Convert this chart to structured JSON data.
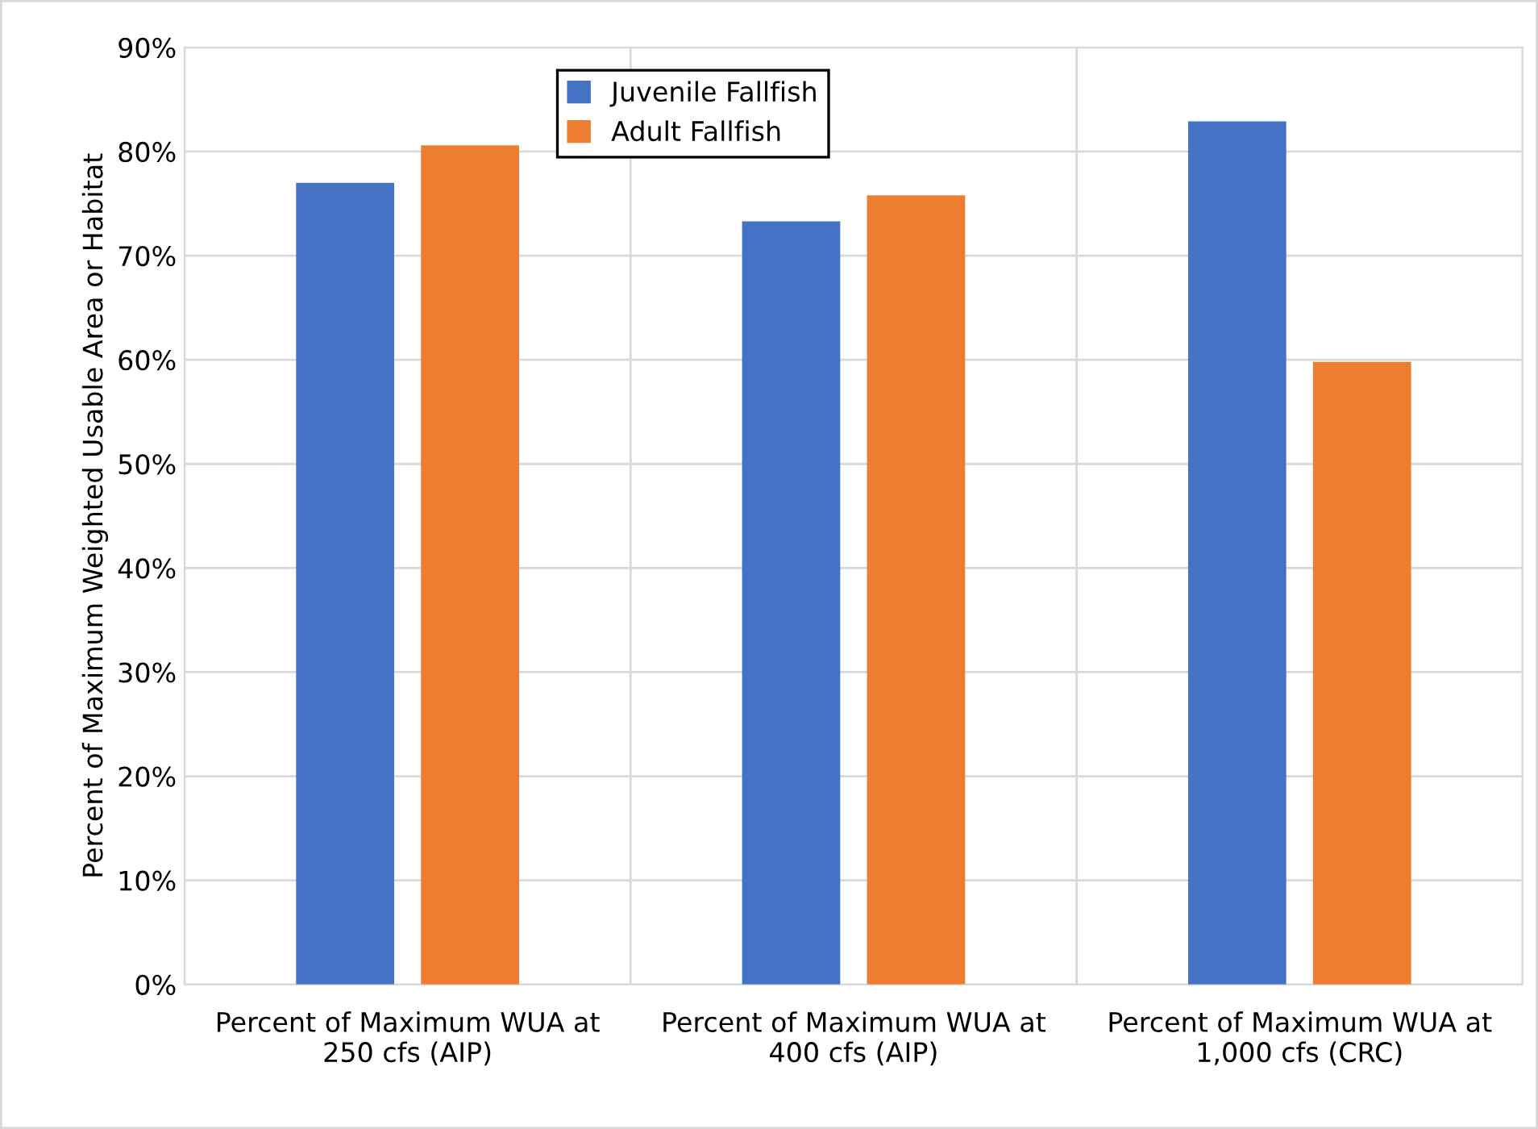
{
  "chart_data": {
    "type": "bar",
    "ylabel": "Percent of Maximum Weighted Usable Area or Habitat",
    "categories": [
      "Percent of Maximum WUA at\n250 cfs (AIP)",
      "Percent of Maximum WUA at\n400 cfs (AIP)",
      "Percent of Maximum WUA at\n1,000 cfs (CRC)"
    ],
    "series": [
      {
        "name": "Juvenile Fallfish",
        "color": "#4472c4",
        "values": [
          77.0,
          73.3,
          82.9
        ]
      },
      {
        "name": "Adult Fallfish",
        "color": "#ed7d31",
        "values": [
          80.6,
          75.8,
          59.8
        ]
      }
    ],
    "ylim": [
      0,
      90
    ],
    "yticks": [
      {
        "value": 0,
        "label": "0%"
      },
      {
        "value": 10,
        "label": "10%"
      },
      {
        "value": 20,
        "label": "20%"
      },
      {
        "value": 30,
        "label": "30%"
      },
      {
        "value": 40,
        "label": "40%"
      },
      {
        "value": 50,
        "label": "50%"
      },
      {
        "value": 60,
        "label": "60%"
      },
      {
        "value": 70,
        "label": "70%"
      },
      {
        "value": 80,
        "label": "80%"
      },
      {
        "value": 90,
        "label": "90%"
      }
    ],
    "grid": true,
    "legend": "top"
  }
}
